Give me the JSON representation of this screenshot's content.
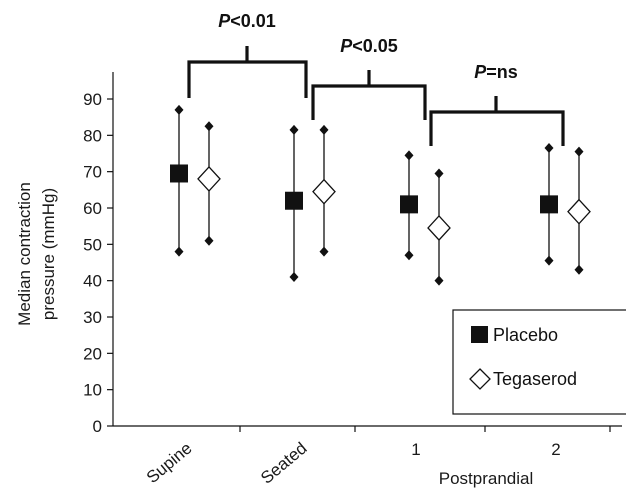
{
  "chart_data": {
    "type": "scatter",
    "ylabel": "Median contraction pressure (mmHg)",
    "ylabel_lines": [
      "Median contraction",
      "pressure (mmHg)"
    ],
    "ylim": [
      0,
      95
    ],
    "yticks": [
      0,
      10,
      20,
      30,
      40,
      50,
      60,
      70,
      80,
      90
    ],
    "categories": [
      "Supine",
      "Seated",
      "1",
      "2"
    ],
    "xlabel": "Postprandial",
    "legend_position": "bottom-right",
    "series": [
      {
        "name": "Placebo",
        "marker": "filled-square",
        "color": "#111111",
        "values": [
          69.5,
          62,
          61,
          61
        ],
        "upper": [
          87,
          81.5,
          74.5,
          76.5
        ],
        "lower": [
          48,
          41,
          47,
          45.5
        ]
      },
      {
        "name": "Tegaserod",
        "marker": "open-diamond",
        "color": "#111111",
        "values": [
          68,
          64.5,
          54.5,
          59
        ],
        "upper": [
          82.5,
          81.5,
          69.5,
          75.5
        ],
        "lower": [
          51,
          48,
          40,
          43
        ]
      }
    ],
    "significance": [
      {
        "label_prefix": "P",
        "label_rest": "<0.01",
        "from": "Supine",
        "to": "Seated"
      },
      {
        "label_prefix": "P",
        "label_rest": "<0.05",
        "from": "Seated",
        "to": "1"
      },
      {
        "label_prefix": "P",
        "label_rest": "=ns",
        "from": "1",
        "to": "2"
      }
    ]
  }
}
